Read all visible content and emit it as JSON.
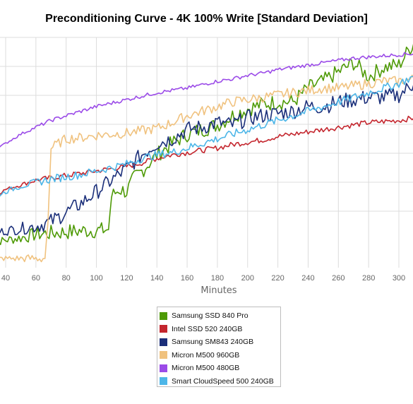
{
  "chart_data": {
    "type": "line",
    "title": "Preconditioning Curve - 4K 100% Write [Standard Deviation]",
    "xlabel": "Minutes",
    "ylabel": "",
    "xlim": [
      30,
      310
    ],
    "ylim": [
      0,
      10
    ],
    "x_ticks": [
      "40",
      "60",
      "80",
      "100",
      "120",
      "140",
      "160",
      "180",
      "200",
      "220",
      "240",
      "260",
      "280",
      "300"
    ],
    "grid": true,
    "legend_position": "bottom-center",
    "series": [
      {
        "name": "Samsung SSD 840 Pro",
        "color": "#4e9a06",
        "x": [
          30,
          32,
          40,
          50,
          60,
          70,
          80,
          90,
          100,
          108,
          110,
          115,
          120,
          125,
          130,
          140,
          150,
          160,
          170,
          180,
          190,
          200,
          210,
          220,
          230,
          240,
          250,
          260,
          270,
          280,
          290,
          300,
          310
        ],
        "y": [
          0.3,
          1.1,
          1.2,
          1.3,
          1.45,
          1.5,
          1.55,
          1.6,
          1.62,
          1.65,
          3.1,
          3.4,
          3.3,
          3.9,
          4.2,
          4.9,
          5.4,
          5.8,
          6.0,
          6.2,
          6.6,
          6.9,
          7.1,
          7.2,
          7.2,
          7.8,
          8.1,
          8.5,
          8.9,
          8.3,
          8.7,
          8.8,
          9.8
        ]
      },
      {
        "name": "Intel SSD 520 240GB",
        "color": "#c4262e",
        "x": [
          30,
          40,
          50,
          60,
          70,
          80,
          90,
          100,
          110,
          120,
          130,
          140,
          150,
          160,
          170,
          180,
          190,
          200,
          210,
          220,
          230,
          240,
          250,
          260,
          270,
          280,
          290,
          300,
          310
        ],
        "y": [
          3.0,
          3.4,
          3.6,
          3.8,
          3.9,
          4.0,
          4.1,
          4.2,
          4.3,
          4.4,
          4.55,
          4.75,
          4.9,
          5.0,
          5.1,
          5.2,
          5.35,
          5.45,
          5.55,
          5.7,
          5.8,
          5.9,
          6.0,
          6.1,
          6.2,
          6.3,
          6.35,
          6.4,
          6.5
        ]
      },
      {
        "name": "Samsung SM843 240GB",
        "color": "#1b2f7a",
        "x": [
          30,
          40,
          50,
          60,
          70,
          80,
          90,
          100,
          110,
          120,
          130,
          140,
          150,
          160,
          170,
          180,
          190,
          200,
          210,
          220,
          230,
          240,
          250,
          260,
          270,
          280,
          290,
          300,
          310
        ],
        "y": [
          1.5,
          1.6,
          1.7,
          1.8,
          2.0,
          2.4,
          2.8,
          3.3,
          3.8,
          4.3,
          4.9,
          5.4,
          5.6,
          6.0,
          6.1,
          6.3,
          6.2,
          6.5,
          6.6,
          6.7,
          6.8,
          7.0,
          7.0,
          7.2,
          7.3,
          7.4,
          7.4,
          7.5,
          8.0
        ]
      },
      {
        "name": "Micron M500 960GB",
        "color": "#f0c27f",
        "x": [
          30,
          40,
          50,
          60,
          66,
          68,
          70,
          80,
          90,
          100,
          110,
          120,
          130,
          140,
          150,
          160,
          170,
          180,
          190,
          200,
          210,
          220,
          230,
          240,
          250,
          260,
          270,
          280,
          290,
          300,
          310
        ],
        "y": [
          0.4,
          0.4,
          0.4,
          0.4,
          0.4,
          2.0,
          5.2,
          5.6,
          5.65,
          5.75,
          5.8,
          5.85,
          5.95,
          6.05,
          6.3,
          6.6,
          6.8,
          7.0,
          7.2,
          7.3,
          7.4,
          7.5,
          7.6,
          7.7,
          7.8,
          7.8,
          7.9,
          8.0,
          8.1,
          8.1,
          8.2
        ]
      },
      {
        "name": "Micron M500 480GB",
        "color": "#9b4be8",
        "x": [
          30,
          40,
          50,
          60,
          70,
          80,
          90,
          100,
          110,
          120,
          130,
          140,
          150,
          160,
          170,
          180,
          190,
          200,
          210,
          220,
          230,
          240,
          250,
          260,
          270,
          280,
          290,
          300,
          310
        ],
        "y": [
          5.0,
          5.4,
          5.8,
          6.1,
          6.4,
          6.6,
          6.8,
          7.0,
          7.15,
          7.3,
          7.45,
          7.6,
          7.7,
          7.8,
          7.95,
          8.1,
          8.2,
          8.35,
          8.45,
          8.6,
          8.7,
          8.8,
          8.9,
          9.0,
          9.1,
          9.15,
          9.2,
          9.25,
          9.3
        ]
      },
      {
        "name": "Smart CloudSpeed 500 240GB",
        "color": "#4db6e8",
        "x": [
          30,
          40,
          50,
          60,
          70,
          80,
          90,
          100,
          110,
          120,
          130,
          140,
          150,
          160,
          170,
          180,
          190,
          200,
          210,
          220,
          230,
          240,
          250,
          260,
          270,
          280,
          290,
          300,
          310
        ],
        "y": [
          3.0,
          3.3,
          3.55,
          3.7,
          3.85,
          3.95,
          4.05,
          4.2,
          4.35,
          4.5,
          4.75,
          4.9,
          5.0,
          5.2,
          5.4,
          5.6,
          5.8,
          6.0,
          6.2,
          6.4,
          6.6,
          6.8,
          7.0,
          7.2,
          7.4,
          7.6,
          7.8,
          8.0,
          8.3
        ]
      }
    ]
  }
}
